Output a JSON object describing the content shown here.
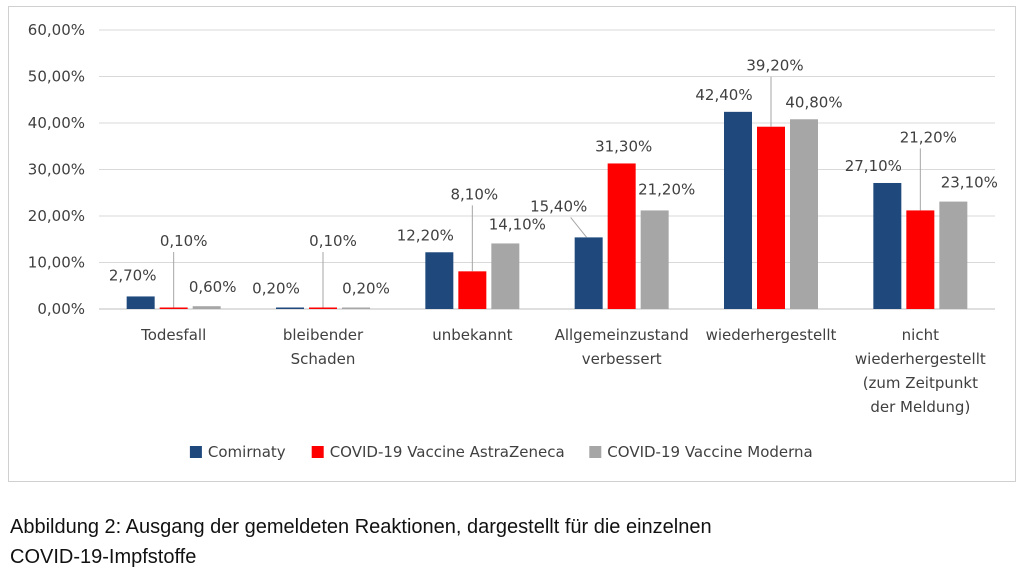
{
  "chart_data": {
    "type": "bar",
    "categories": [
      [
        "Todesfall"
      ],
      [
        "bleibender",
        "Schaden"
      ],
      [
        "unbekannt"
      ],
      [
        "Allgemeinzustand",
        "verbessert"
      ],
      [
        "wiederhergestellt"
      ],
      [
        "nicht",
        "wiederhergestellt",
        "(zum Zeitpunkt",
        "der Meldung)"
      ]
    ],
    "series": [
      {
        "name": "Comirnaty",
        "color": "#1f497d",
        "values": [
          2.7,
          0.2,
          12.2,
          15.4,
          42.4,
          27.1
        ],
        "labels": [
          "2,70%",
          "0,20%",
          "12,20%",
          "15,40%",
          "42,40%",
          "27,10%"
        ]
      },
      {
        "name": "COVID-19 Vaccine AstraZeneca",
        "color": "#ff0000",
        "values": [
          0.1,
          0.1,
          8.1,
          31.3,
          39.2,
          21.2
        ],
        "labels": [
          "0,10%",
          "0,10%",
          "8,10%",
          "31,30%",
          "39,20%",
          "21,20%"
        ]
      },
      {
        "name": "COVID-19 Vaccine Moderna",
        "color": "#a6a6a6",
        "values": [
          0.6,
          0.2,
          14.1,
          21.2,
          40.8,
          23.1
        ],
        "labels": [
          "0,60%",
          "0,20%",
          "14,10%",
          "21,20%",
          "40,80%",
          "23,10%"
        ]
      }
    ],
    "ylim": [
      0,
      60
    ],
    "yticks": [
      0,
      10,
      20,
      30,
      40,
      50,
      60
    ],
    "ytick_labels": [
      "0,00%",
      "10,00%",
      "20,00%",
      "30,00%",
      "40,00%",
      "50,00%",
      "60,00%"
    ],
    "grid": true,
    "legend_position": "bottom",
    "title": "",
    "xlabel": "",
    "ylabel": ""
  },
  "caption": {
    "line1": "Abbildung 2: Ausgang der gemeldeten Reaktionen, dargestellt für die einzelnen",
    "line2": "COVID-19-Impfstoffe"
  }
}
